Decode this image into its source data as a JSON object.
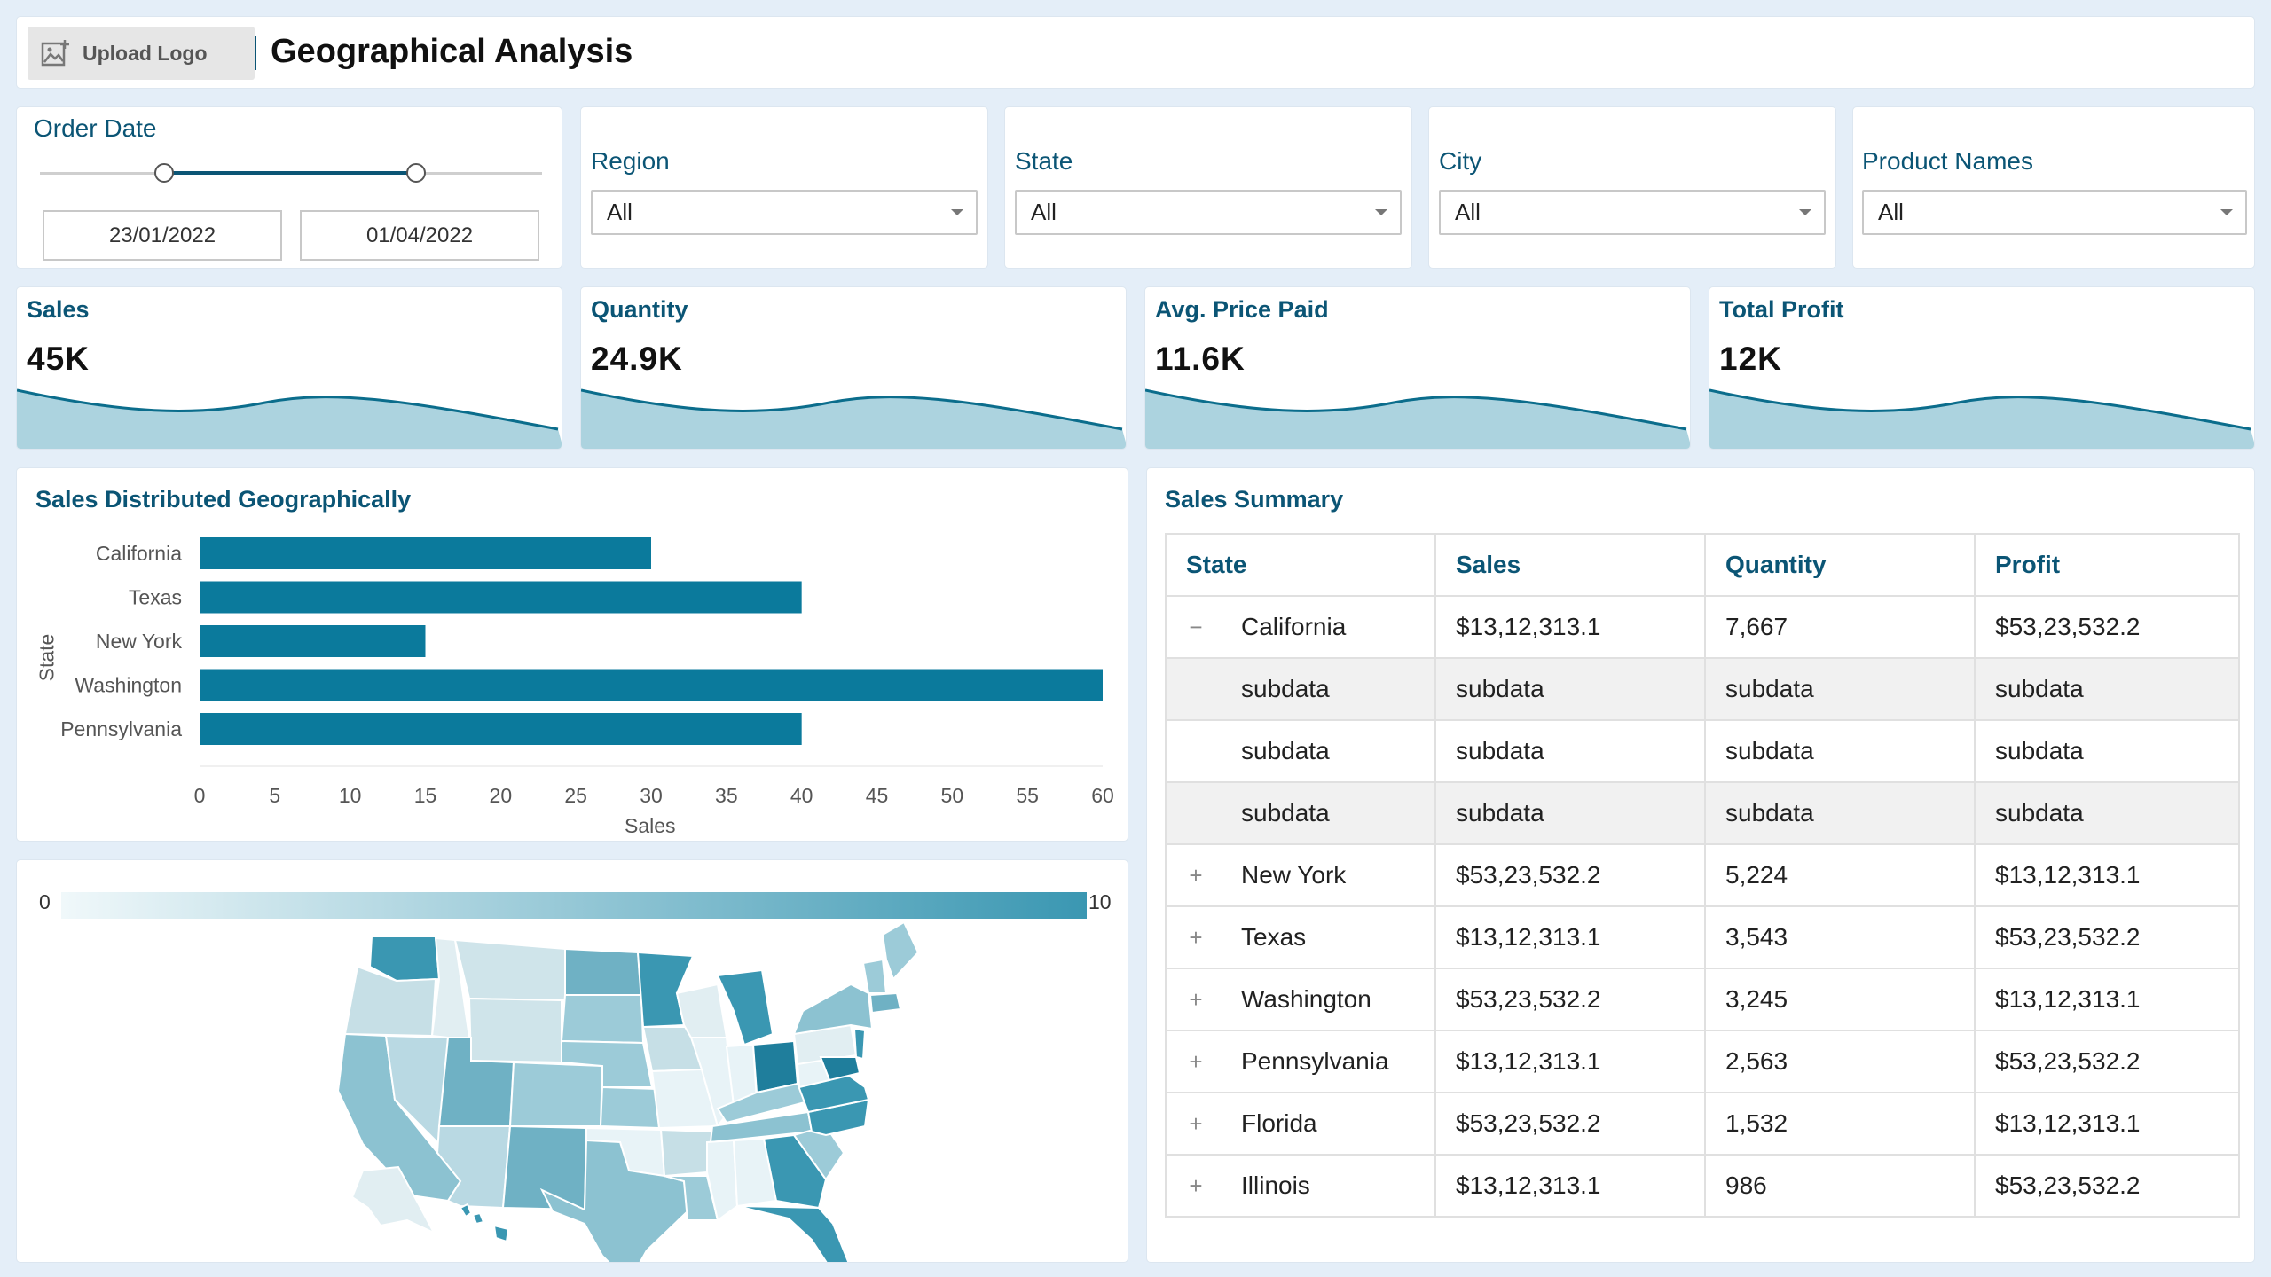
{
  "header": {
    "upload_logo_label": "Upload Logo",
    "title": "Geographical Analysis"
  },
  "filters": {
    "order_date": {
      "label": "Order Date",
      "start": "23/01/2022",
      "end": "01/04/2022",
      "slider_start_fraction": 0.25,
      "slider_end_fraction": 0.75
    },
    "region": {
      "label": "Region",
      "value": "All"
    },
    "state": {
      "label": "State",
      "value": "All"
    },
    "city": {
      "label": "City",
      "value": "All"
    },
    "product_names": {
      "label": "Product Names",
      "value": "All"
    }
  },
  "kpis": [
    {
      "label": "Sales",
      "value": "45K"
    },
    {
      "label": "Quantity",
      "value": "24.9K"
    },
    {
      "label": "Avg. Price Paid",
      "value": "11.6K"
    },
    {
      "label": "Total Profit",
      "value": "12K"
    }
  ],
  "bar_chart": {
    "title": "Sales Distributed Geographically"
  },
  "chart_data": {
    "type": "bar",
    "orientation": "horizontal",
    "categories": [
      "California",
      "Texas",
      "New York",
      "Washington",
      "Pennsylvania"
    ],
    "values": [
      30,
      40,
      15,
      60,
      40
    ],
    "xlabel": "Sales",
    "ylabel": "State",
    "xlim": [
      0,
      60
    ],
    "xticks": [
      "0",
      "5",
      "10",
      "15",
      "20",
      "25",
      "30",
      "35",
      "40",
      "45",
      "50",
      "55",
      "60"
    ],
    "color": "#0b7a9c"
  },
  "map": {
    "legend_min": "0",
    "legend_max": "10",
    "color_low": "#e8f3f7",
    "color_high": "#3a97b2"
  },
  "summary": {
    "title": "Sales Summary",
    "columns": [
      "State",
      "Sales",
      "Quantity",
      "Profit"
    ],
    "rows": [
      {
        "toggle": "−",
        "state": "California",
        "sales": "$13,12,313.1",
        "quantity": "7,667",
        "profit": "$53,23,532.2"
      },
      {
        "sub": true,
        "grey": true,
        "state": "subdata",
        "sales": "subdata",
        "quantity": "subdata",
        "profit": "subdata"
      },
      {
        "sub": true,
        "grey": false,
        "state": "subdata",
        "sales": "subdata",
        "quantity": "subdata",
        "profit": "subdata"
      },
      {
        "sub": true,
        "grey": true,
        "state": "subdata",
        "sales": "subdata",
        "quantity": "subdata",
        "profit": "subdata"
      },
      {
        "toggle": "+",
        "state": "New York",
        "sales": "$53,23,532.2",
        "quantity": "5,224",
        "profit": "$13,12,313.1"
      },
      {
        "toggle": "+",
        "state": "Texas",
        "sales": "$13,12,313.1",
        "quantity": "3,543",
        "profit": "$53,23,532.2"
      },
      {
        "toggle": "+",
        "state": "Washington",
        "sales": "$53,23,532.2",
        "quantity": "3,245",
        "profit": "$13,12,313.1"
      },
      {
        "toggle": "+",
        "state": "Pennsylvania",
        "sales": "$13,12,313.1",
        "quantity": "2,563",
        "profit": "$53,23,532.2"
      },
      {
        "toggle": "+",
        "state": "Florida",
        "sales": "$53,23,532.2",
        "quantity": "1,532",
        "profit": "$13,12,313.1"
      },
      {
        "toggle": "+",
        "state": "Illinois",
        "sales": "$13,12,313.1",
        "quantity": "986",
        "profit": "$53,23,532.2"
      }
    ]
  }
}
